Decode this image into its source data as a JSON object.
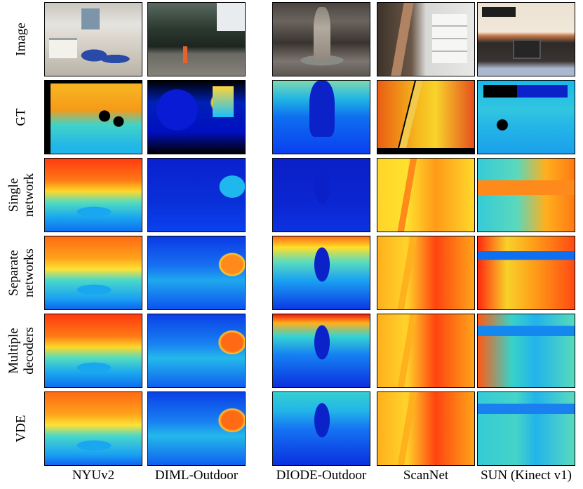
{
  "figure": {
    "row_labels": [
      {
        "line1": "Image",
        "line2": ""
      },
      {
        "line1": "GT",
        "line2": ""
      },
      {
        "line1": "Single",
        "line2": "network"
      },
      {
        "line1": "Separate",
        "line2": "networks"
      },
      {
        "line1": "Multiple",
        "line2": "decoders"
      },
      {
        "line1": "VDE",
        "line2": ""
      }
    ],
    "column_labels": [
      "NYUv2",
      "DIML-Outdoor",
      "DIODE-Outdoor",
      "ScanNet",
      "SUN (Kinect v1)"
    ]
  }
}
